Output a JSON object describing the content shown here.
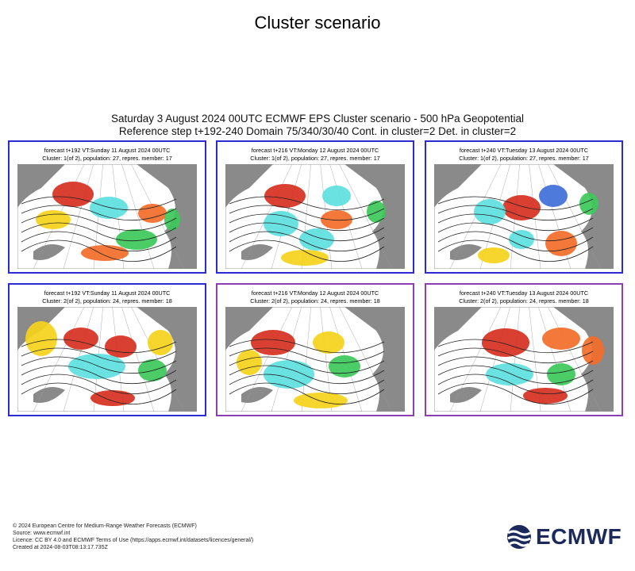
{
  "page_title": "Cluster scenario",
  "chart_title_line1": "Saturday 3 August 2024 00UTC ECMWF EPS Cluster scenario - 500 hPa Geopotential",
  "chart_title_line2": "Reference step t+192-240 Domain 75/340/30/40 Cont. in cluster=2 Det. in cluster=2",
  "panels": [
    {
      "line1": "forecast t+192 VT:Sunday 11 August 2024 00UTC",
      "line2": "Cluster: 1(of 2), population: 27, repres. member: 17",
      "border": "#2b2bd4"
    },
    {
      "line1": "forecast t+216 VT:Monday 12 August 2024 00UTC",
      "line2": "Cluster: 1(of 2), population: 27, repres. member: 17",
      "border": "#2b2bd4"
    },
    {
      "line1": "forecast t+240 VT:Tuesday 13 August 2024 00UTC",
      "line2": "Cluster: 1(of 2), population: 27, repres. member: 17",
      "border": "#2b2bd4"
    },
    {
      "line1": "forecast t+192 VT:Sunday 11 August 2024 00UTC",
      "line2": "Cluster: 2(of 2), population: 24, repres. member: 18",
      "border": "#2b2bd4"
    },
    {
      "line1": "forecast t+216 VT:Monday 12 August 2024 00UTC",
      "line2": "Cluster: 2(of 2), population: 24, repres. member: 18",
      "border": "#8c3fb0"
    },
    {
      "line1": "forecast t+240 VT:Tuesday 13 August 2024 00UTC",
      "line2": "Cluster: 2(of 2), population: 24, repres. member: 18",
      "border": "#8c3fb0"
    }
  ],
  "footer": {
    "copyright": "© 2024 European Centre for Medium-Range Weather Forecasts (ECMWF)",
    "source": "Source: www.ecmwf.int",
    "licence": "Licence: CC BY 4.0 and ECMWF Terms of Use (https://apps.ecmwf.int/datasets/licences/general/)",
    "created": "Created at 2024-08-03T08:13:17.735Z"
  },
  "logo_text": "ECMWF",
  "colors": {
    "warm_red": "#d7301f",
    "warm_orange": "#f46d2a",
    "warm_yellow": "#f5d21a",
    "cold_green": "#3cc85a",
    "cold_cyan": "#5ee0e0",
    "cold_blue": "#3f6fd8",
    "land": "#8a8a8a",
    "sea": "#ffffff"
  }
}
